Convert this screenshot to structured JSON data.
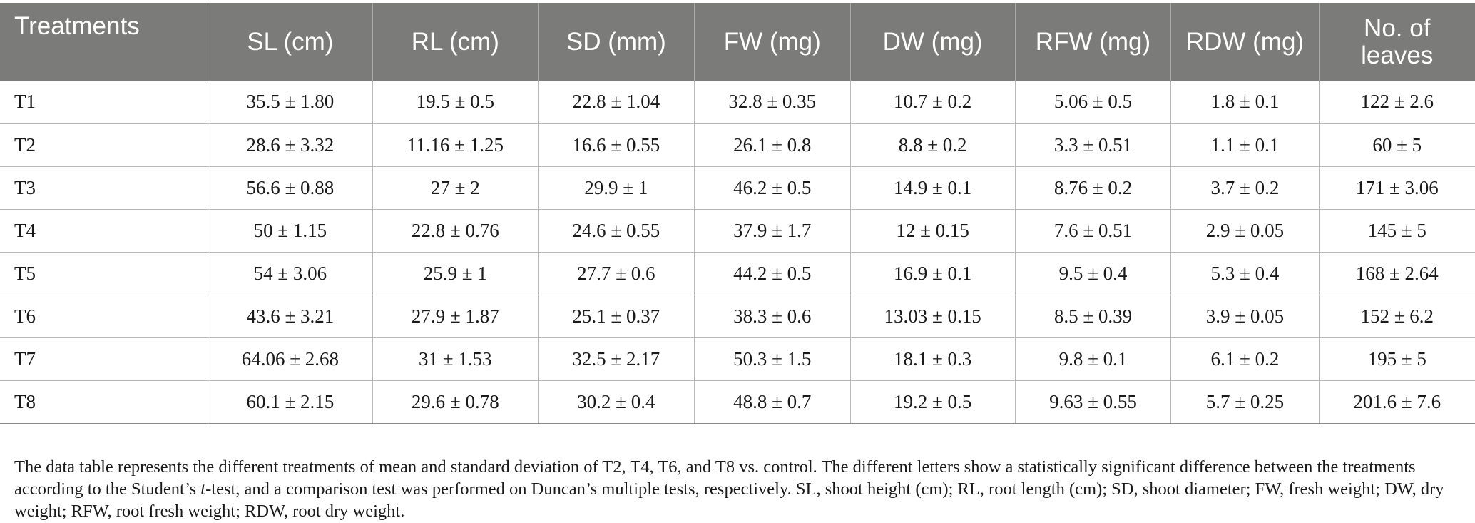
{
  "table": {
    "headers": [
      "Treatments",
      "SL (cm)",
      "RL (cm)",
      "SD (mm)",
      "FW (mg)",
      "DW (mg)",
      "RFW (mg)",
      "RDW (mg)",
      "No. of leaves"
    ],
    "rows": [
      [
        "T1",
        "35.5 ± 1.80",
        "19.5 ± 0.5",
        "22.8 ± 1.04",
        "32.8 ± 0.35",
        "10.7 ± 0.2",
        "5.06 ± 0.5",
        "1.8 ± 0.1",
        "122 ± 2.6"
      ],
      [
        "T2",
        "28.6 ± 3.32",
        "11.16 ± 1.25",
        "16.6 ± 0.55",
        "26.1 ± 0.8",
        "8.8 ± 0.2",
        "3.3 ± 0.51",
        "1.1 ± 0.1",
        "60 ± 5"
      ],
      [
        "T3",
        "56.6 ± 0.88",
        "27 ± 2",
        "29.9 ± 1",
        "46.2 ± 0.5",
        "14.9 ± 0.1",
        "8.76 ± 0.2",
        "3.7 ± 0.2",
        "171 ± 3.06"
      ],
      [
        "T4",
        "50 ± 1.15",
        "22.8 ± 0.76",
        "24.6 ± 0.55",
        "37.9 ± 1.7",
        "12 ± 0.15",
        "7.6 ± 0.51",
        "2.9 ± 0.05",
        "145 ± 5"
      ],
      [
        "T5",
        "54 ± 3.06",
        "25.9 ± 1",
        "27.7 ± 0.6",
        "44.2 ± 0.5",
        "16.9 ± 0.1",
        "9.5 ± 0.4",
        "5.3 ± 0.4",
        "168 ± 2.64"
      ],
      [
        "T6",
        "43.6 ± 3.21",
        "27.9 ± 1.87",
        "25.1 ± 0.37",
        "38.3 ± 0.6",
        "13.03 ± 0.15",
        "8.5 ± 0.39",
        "3.9 ± 0.05",
        "152 ± 6.2"
      ],
      [
        "T7",
        "64.06 ± 2.68",
        "31 ± 1.53",
        "32.5 ± 2.17",
        "50.3 ± 1.5",
        "18.1 ± 0.3",
        "9.8 ± 0.1",
        "6.1 ± 0.2",
        "195 ± 5"
      ],
      [
        "T8",
        "60.1 ± 2.15",
        "29.6 ± 0.78",
        "30.2 ± 0.4",
        "48.8 ± 0.7",
        "19.2 ± 0.5",
        "9.63 ± 0.55",
        "5.7 ± 0.25",
        "201.6 ± 7.6"
      ]
    ]
  },
  "footnote": {
    "part1": "The data table represents the different treatments of mean and standard deviation of T2, T4, T6, and T8 vs. control. The different letters show a statistically significant difference between the treatments according to the Student’s ",
    "italic": "t",
    "part2": "-test, and a comparison test was performed on Duncan’s multiple tests, respectively. SL, shoot height (cm); RL, root length (cm); SD, shoot diameter; FW, fresh weight; DW, dry weight; RFW, root fresh weight; RDW, root dry weight."
  }
}
